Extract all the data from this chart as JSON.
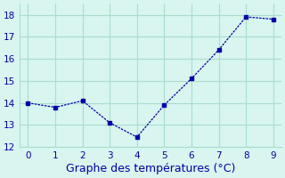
{
  "x": [
    0,
    1,
    2,
    3,
    4,
    5,
    6,
    7,
    8,
    9
  ],
  "y": [
    14.0,
    13.8,
    14.1,
    13.1,
    12.45,
    13.9,
    15.1,
    16.4,
    17.9,
    17.8
  ],
  "xlabel": "Graphe des températures (°C)",
  "xlim": [
    -0.3,
    9.3
  ],
  "ylim": [
    12,
    18.5
  ],
  "yticks": [
    12,
    13,
    14,
    15,
    16,
    17,
    18
  ],
  "xticks": [
    0,
    1,
    2,
    3,
    4,
    5,
    6,
    7,
    8,
    9
  ],
  "line_color": "#0000aa",
  "marker": "s",
  "marker_size": 3,
  "background_color": "#d8f5f0",
  "grid_color": "#aaddcc",
  "xlabel_color": "#0000aa",
  "xlabel_fontsize": 9
}
